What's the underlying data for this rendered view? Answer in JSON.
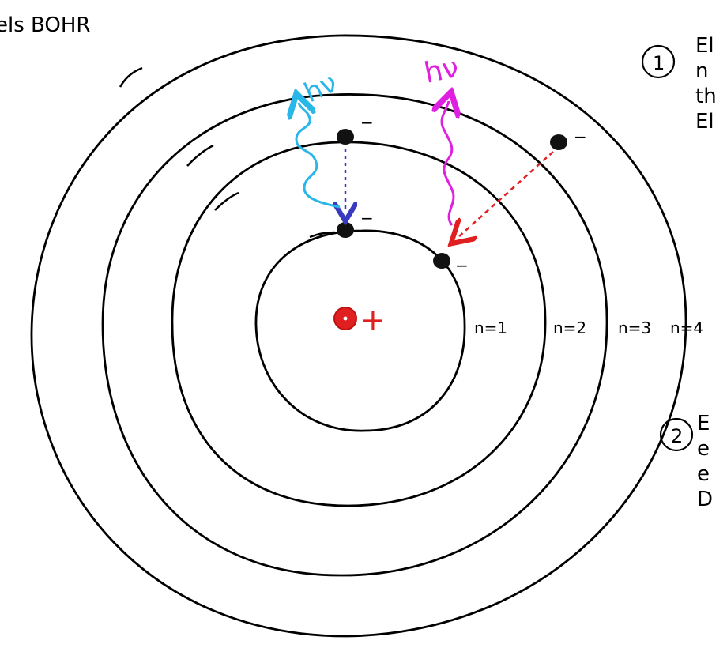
{
  "title": "els BOHR",
  "notes": [
    {
      "number": "1",
      "fragments": [
        "El",
        "n",
        "th",
        "El"
      ]
    },
    {
      "number": "2",
      "fragments": [
        "E",
        "e",
        "e",
        "D"
      ]
    }
  ],
  "orbits": [
    {
      "label": "n=1"
    },
    {
      "label": "n=2"
    },
    {
      "label": "n=3"
    },
    {
      "label": "n=4"
    }
  ],
  "nucleus": {
    "charge": "+"
  },
  "electron_charge": "−",
  "photon_label": "hν",
  "colors": {
    "ink": "#000000",
    "nucleus": "#e02020",
    "photon_blue": "#29b6e8",
    "photon_magenta": "#e020e0",
    "transition_blue": "#3a3ac0",
    "transition_red": "#e02020"
  }
}
